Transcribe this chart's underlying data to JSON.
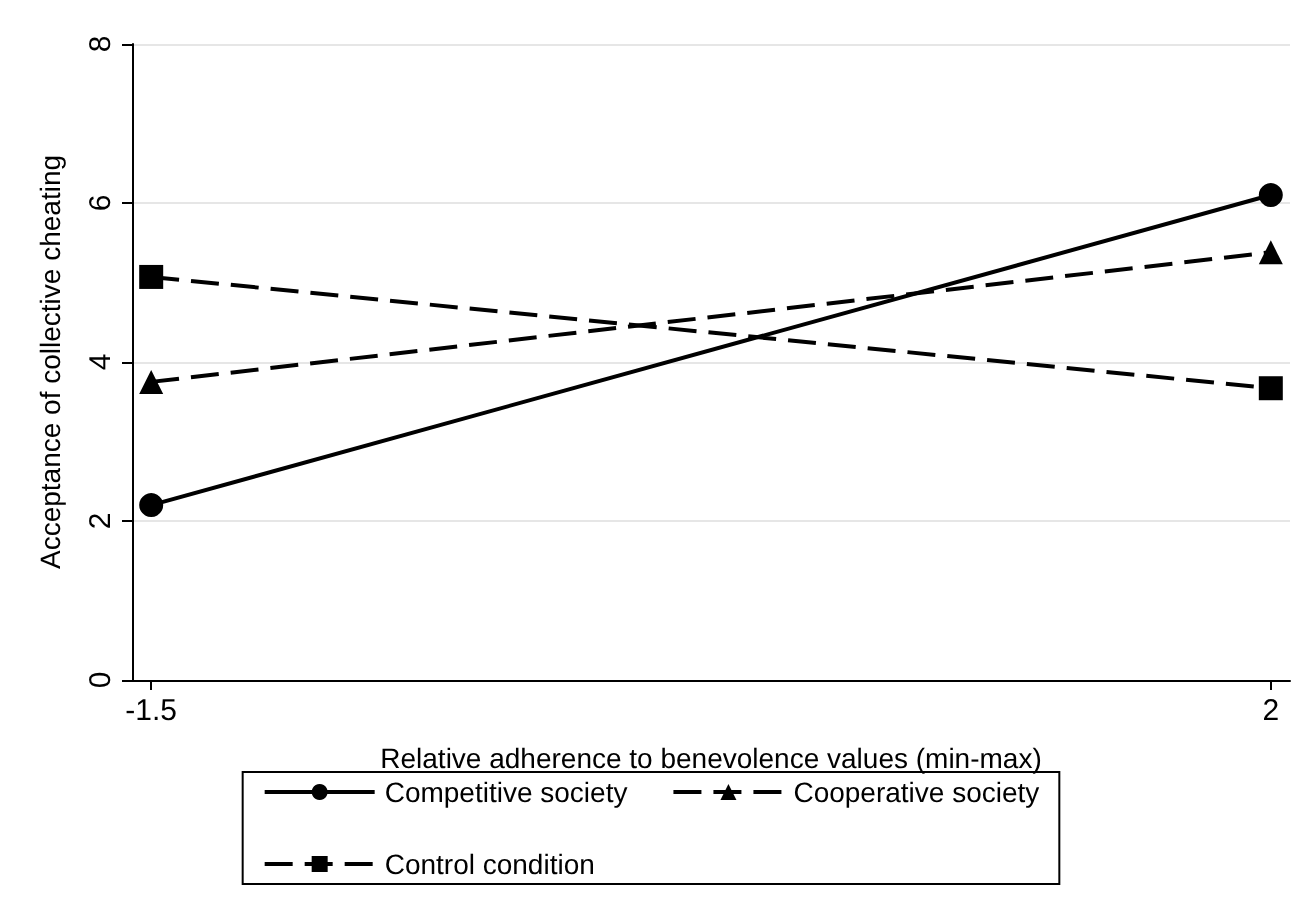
{
  "chart_data": {
    "type": "line",
    "xlabel": "Relative adherence to benevolence values (min-max)",
    "ylabel": "Acceptance of collective cheating",
    "x": [
      -1.5,
      2
    ],
    "xlim": [
      -1.56,
      2.06
    ],
    "xticks": [
      -1.5,
      2
    ],
    "ylim": [
      0,
      8
    ],
    "yticks": [
      0,
      2,
      4,
      6,
      8
    ],
    "grid": "y",
    "legend": "bottom",
    "series": [
      {
        "name": "Competitive society",
        "color": "#000000",
        "values": [
          2.2,
          6.1
        ],
        "marker": "circle",
        "line_style": "solid"
      },
      {
        "name": "Cooperative society",
        "color": "#000000",
        "values": [
          3.75,
          5.38
        ],
        "marker": "triangle",
        "line_style": "dashed"
      },
      {
        "name": "Control condition",
        "color": "#000000",
        "values": [
          5.07,
          3.67
        ],
        "marker": "square",
        "line_style": "dashed"
      }
    ]
  }
}
